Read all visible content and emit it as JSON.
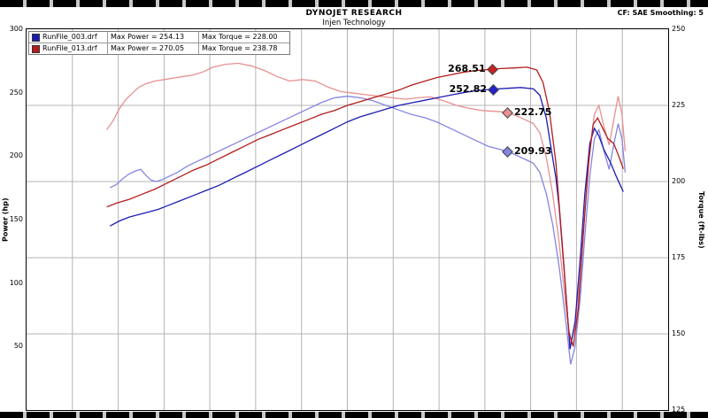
{
  "header": {
    "title": "DYNOJET RESEARCH",
    "subtitle": "Injen Technology",
    "correction_info": "CF: SAE  Smoothing: 5"
  },
  "chart_data": {
    "type": "line",
    "title": "DYNOJET RESEARCH",
    "subtitle": "Injen Technology",
    "correction": "CF: SAE",
    "smoothing": "5",
    "grid_color": "#b4b4b4",
    "x_gridline_count": 13,
    "x_axis": {
      "label": "",
      "tick_labels_visible": false
    },
    "y_left": {
      "label": "Power (hp)",
      "min": 0,
      "max": 300,
      "ticks": [
        300,
        250,
        200,
        150,
        100,
        50
      ]
    },
    "y_right": {
      "label": "Torque (ft-lbs)",
      "min": 125,
      "max": 250,
      "ticks": [
        250,
        225,
        200,
        175,
        150,
        125
      ],
      "gridlines": [
        225,
        200,
        175,
        150
      ]
    },
    "legend": [
      {
        "file": "RunFile_003.drf",
        "max_power": "Max Power = 254.13",
        "max_torque": "Max Torque = 228.00",
        "color": "#1c1cb4"
      },
      {
        "file": "RunFile_013.drf",
        "max_power": "Max Power = 270.05",
        "max_torque": "Max Torque = 238.78",
        "color": "#b41c1c"
      }
    ],
    "series": [
      {
        "name": "RunFile_003.drf Torque",
        "axis": "torque",
        "color": "#8585e0",
        "points": [
          [
            13,
            198
          ],
          [
            14,
            199
          ],
          [
            15,
            201
          ],
          [
            16,
            202.5
          ],
          [
            17,
            203.5
          ],
          [
            17.8,
            204
          ],
          [
            18.6,
            202
          ],
          [
            19.4,
            200.5
          ],
          [
            20.2,
            200
          ],
          [
            21,
            200.5
          ],
          [
            22,
            201.5
          ],
          [
            23.5,
            203
          ],
          [
            25,
            205
          ],
          [
            26.5,
            206.5
          ],
          [
            28,
            208
          ],
          [
            30,
            210
          ],
          [
            32,
            212
          ],
          [
            34,
            214
          ],
          [
            36,
            216
          ],
          [
            38,
            218
          ],
          [
            40,
            220
          ],
          [
            42,
            222
          ],
          [
            44,
            224
          ],
          [
            46,
            226
          ],
          [
            48,
            227.5
          ],
          [
            50,
            228
          ],
          [
            52,
            227.5
          ],
          [
            54,
            226.5
          ],
          [
            56,
            225
          ],
          [
            58,
            223.5
          ],
          [
            60,
            222
          ],
          [
            62,
            221
          ],
          [
            64,
            219.5
          ],
          [
            66,
            217.5
          ],
          [
            68,
            215.5
          ],
          [
            70,
            213.5
          ],
          [
            72,
            211.5
          ],
          [
            74.9,
            209.93
          ],
          [
            77,
            208
          ],
          [
            79,
            206
          ],
          [
            80,
            203
          ],
          [
            81,
            196
          ],
          [
            82,
            186
          ],
          [
            83,
            172
          ],
          [
            84,
            155
          ],
          [
            84.8,
            140
          ],
          [
            85.5,
            146
          ],
          [
            86.3,
            162
          ],
          [
            87,
            182
          ],
          [
            87.8,
            202
          ],
          [
            88.5,
            214
          ],
          [
            89.2,
            217
          ],
          [
            90,
            210
          ],
          [
            90.8,
            204
          ],
          [
            91.5,
            212
          ],
          [
            92.2,
            219
          ],
          [
            92.8,
            214
          ],
          [
            93.3,
            203
          ]
        ]
      },
      {
        "name": "RunFile_013.drf Torque",
        "axis": "torque",
        "color": "#e89090",
        "points": [
          [
            12.5,
            217
          ],
          [
            13.5,
            220
          ],
          [
            14.5,
            224
          ],
          [
            15.5,
            227
          ],
          [
            16.5,
            229
          ],
          [
            17.5,
            231
          ],
          [
            18.5,
            232
          ],
          [
            20,
            233
          ],
          [
            21.5,
            233.5
          ],
          [
            23,
            234
          ],
          [
            24.5,
            234.5
          ],
          [
            26,
            235
          ],
          [
            27.5,
            236
          ],
          [
            29,
            237.5
          ],
          [
            31,
            238.5
          ],
          [
            33,
            238.8
          ],
          [
            35,
            238
          ],
          [
            37,
            236.5
          ],
          [
            39,
            234.5
          ],
          [
            41,
            233
          ],
          [
            43,
            233.5
          ],
          [
            45,
            233
          ],
          [
            47,
            231
          ],
          [
            49,
            229.5
          ],
          [
            51,
            229
          ],
          [
            53,
            228.5
          ],
          [
            55,
            228
          ],
          [
            57,
            227.5
          ],
          [
            59,
            227
          ],
          [
            61,
            227.5
          ],
          [
            63,
            227.8
          ],
          [
            65,
            226.5
          ],
          [
            67,
            225
          ],
          [
            69,
            224
          ],
          [
            71,
            223.3
          ],
          [
            74.9,
            222.75
          ],
          [
            77,
            221
          ],
          [
            79,
            219
          ],
          [
            80,
            216
          ],
          [
            81,
            208
          ],
          [
            82,
            196
          ],
          [
            83,
            180
          ],
          [
            84,
            160
          ],
          [
            84.8,
            147
          ],
          [
            85.5,
            152
          ],
          [
            86.3,
            170
          ],
          [
            87,
            190
          ],
          [
            87.8,
            210
          ],
          [
            88.5,
            222
          ],
          [
            89.2,
            225
          ],
          [
            90,
            218
          ],
          [
            90.8,
            212
          ],
          [
            91.5,
            220
          ],
          [
            92.2,
            228
          ],
          [
            92.8,
            222
          ],
          [
            93.3,
            210
          ]
        ]
      },
      {
        "name": "RunFile_003.drf Power",
        "axis": "power",
        "color": "#1c1cb4",
        "points": [
          [
            13,
            145
          ],
          [
            14.5,
            149
          ],
          [
            16,
            152
          ],
          [
            17.5,
            154
          ],
          [
            19,
            156
          ],
          [
            20.5,
            158
          ],
          [
            22,
            161
          ],
          [
            24,
            165
          ],
          [
            26,
            169
          ],
          [
            28,
            173
          ],
          [
            30,
            177
          ],
          [
            32,
            182
          ],
          [
            34,
            187
          ],
          [
            36,
            192
          ],
          [
            38,
            197
          ],
          [
            40,
            202
          ],
          [
            42,
            207
          ],
          [
            44,
            212
          ],
          [
            46,
            217
          ],
          [
            48,
            222
          ],
          [
            50,
            227
          ],
          [
            52,
            231
          ],
          [
            54,
            234
          ],
          [
            56,
            237
          ],
          [
            58,
            240
          ],
          [
            60,
            242
          ],
          [
            62,
            244
          ],
          [
            64,
            246
          ],
          [
            66,
            248
          ],
          [
            68,
            250
          ],
          [
            70,
            251.5
          ],
          [
            72.7,
            252.82
          ],
          [
            75,
            253.5
          ],
          [
            77,
            254.1
          ],
          [
            79,
            253
          ],
          [
            80,
            248
          ],
          [
            81,
            230
          ],
          [
            81.8,
            205
          ],
          [
            82.5,
            183
          ],
          [
            83,
            160
          ],
          [
            83.8,
            110
          ],
          [
            84.7,
            48
          ],
          [
            85.5,
            70
          ],
          [
            86.3,
            120
          ],
          [
            87,
            170
          ],
          [
            87.8,
            210
          ],
          [
            88.5,
            222
          ],
          [
            89.2,
            216
          ],
          [
            90,
            205
          ],
          [
            91,
            195
          ],
          [
            92,
            183
          ],
          [
            93,
            172
          ]
        ]
      },
      {
        "name": "RunFile_013.drf Power",
        "axis": "power",
        "color": "#b41c1c",
        "points": [
          [
            12.5,
            160
          ],
          [
            14,
            163
          ],
          [
            16,
            166
          ],
          [
            18,
            170
          ],
          [
            20,
            174
          ],
          [
            22,
            179
          ],
          [
            24,
            184
          ],
          [
            26,
            189
          ],
          [
            28,
            193
          ],
          [
            30,
            198
          ],
          [
            32,
            203
          ],
          [
            34,
            208
          ],
          [
            36,
            213
          ],
          [
            38,
            217
          ],
          [
            40,
            221
          ],
          [
            42,
            225
          ],
          [
            44,
            229
          ],
          [
            46,
            233
          ],
          [
            48,
            236
          ],
          [
            50,
            240
          ],
          [
            52,
            243
          ],
          [
            54,
            246
          ],
          [
            56,
            249
          ],
          [
            58,
            252
          ],
          [
            60,
            256
          ],
          [
            62,
            259
          ],
          [
            64,
            262
          ],
          [
            66,
            264
          ],
          [
            68,
            266
          ],
          [
            70,
            267.5
          ],
          [
            72.5,
            268.51
          ],
          [
            74,
            269
          ],
          [
            76,
            269.5
          ],
          [
            78,
            270.05
          ],
          [
            79.5,
            268
          ],
          [
            80.5,
            258
          ],
          [
            81.5,
            235
          ],
          [
            82.5,
            195
          ],
          [
            83.5,
            130
          ],
          [
            84.5,
            62
          ],
          [
            85.2,
            50
          ],
          [
            86,
            80
          ],
          [
            86.8,
            140
          ],
          [
            87.6,
            195
          ],
          [
            88.3,
            225
          ],
          [
            89,
            230
          ],
          [
            89.8,
            222
          ],
          [
            90.6,
            214
          ],
          [
            91.5,
            210
          ],
          [
            92.3,
            200
          ],
          [
            93,
            190
          ]
        ]
      }
    ],
    "annotations": [
      {
        "label": "268.51",
        "value": 268.51,
        "x_pct": 72.5,
        "axis": "power",
        "color": "#cc2222",
        "label_side": "left"
      },
      {
        "label": "252.82",
        "value": 252.82,
        "x_pct": 72.7,
        "axis": "power",
        "color": "#2222cc",
        "label_side": "left"
      },
      {
        "label": "222.75",
        "value": 222.75,
        "x_pct": 74.9,
        "axis": "torque",
        "color": "#e89090",
        "label_side": "right"
      },
      {
        "label": "209.93",
        "value": 209.93,
        "x_pct": 74.9,
        "axis": "torque",
        "color": "#8585e0",
        "label_side": "right"
      }
    ]
  }
}
